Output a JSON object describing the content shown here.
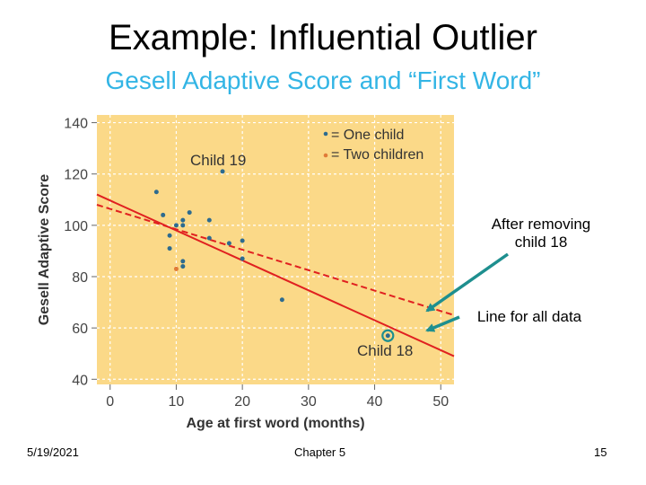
{
  "slide": {
    "title": "Example: Influential Outlier",
    "subtitle": "Gesell Adaptive Score and “First Word”",
    "subtitle_color": "#33b5e5",
    "annotation_removed": "After removing child 18",
    "annotation_removed_l1": "After removing",
    "annotation_removed_l2": "child 18",
    "annotation_all": "Line for all data",
    "arrow_color": "#1e8f8f",
    "footer_date": "5/19/2021",
    "footer_chapter": "Chapter 5",
    "footer_page": "15"
  },
  "chart_data": {
    "type": "scatter",
    "xlabel": "Age at first word (months)",
    "ylabel": "Gesell Adaptive Score",
    "xlim": [
      -2,
      52
    ],
    "ylim": [
      38,
      143
    ],
    "xticks": [
      0,
      10,
      20,
      30,
      40,
      50
    ],
    "yticks": [
      40,
      60,
      80,
      100,
      120,
      140
    ],
    "background": "#fbd988",
    "point_color_one": "#2d6b8f",
    "point_color_two": "#e07b39",
    "line_color": "#e02020",
    "legend": [
      {
        "label": "= One child",
        "color": "#2d6b8f"
      },
      {
        "label": "= Two children",
        "color": "#e07b39"
      }
    ],
    "annotations": [
      {
        "label": "Child 19",
        "x": 17,
        "y": 126
      },
      {
        "label": "Child 18",
        "x": 42,
        "y": 63
      }
    ],
    "series": [
      {
        "name": "One child",
        "points": [
          [
            7,
            113
          ],
          [
            8,
            104
          ],
          [
            9,
            96
          ],
          [
            9,
            91
          ],
          [
            10,
            100
          ],
          [
            11,
            102
          ],
          [
            11,
            100
          ],
          [
            11,
            86
          ],
          [
            11,
            84
          ],
          [
            12,
            105
          ],
          [
            15,
            102
          ],
          [
            15,
            95
          ],
          [
            17,
            121
          ],
          [
            18,
            93
          ],
          [
            20,
            94
          ],
          [
            20,
            87
          ],
          [
            26,
            71
          ]
        ]
      },
      {
        "name": "Two children",
        "points": [
          [
            10,
            83
          ]
        ]
      }
    ],
    "outlier": {
      "name": "Child 18",
      "x": 42,
      "y": 57
    },
    "lines": [
      {
        "name": "Line for all data",
        "style": "solid",
        "x": [
          -2,
          52
        ],
        "y": [
          112,
          49
        ]
      },
      {
        "name": "After removing child 18",
        "style": "dashed",
        "x": [
          -2,
          52
        ],
        "y": [
          108,
          65
        ]
      }
    ]
  }
}
